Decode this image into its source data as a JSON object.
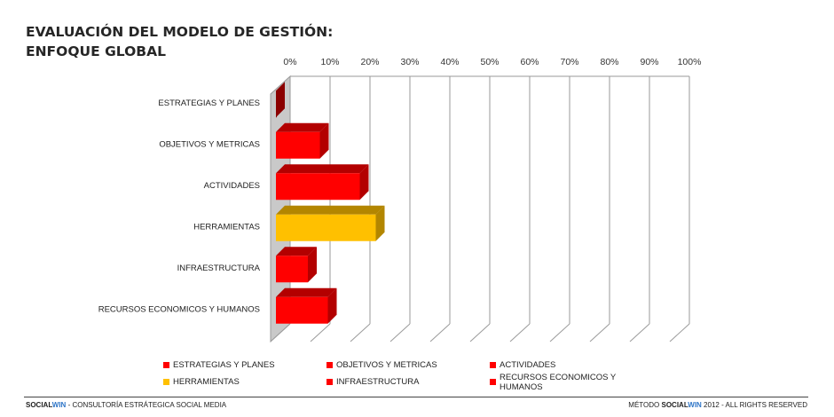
{
  "title": {
    "line1": "EVALUACIÓN DEL MODELO DE GESTIÓN:",
    "line2": "ENFOQUE GLOBAL"
  },
  "chart_data": {
    "type": "bar",
    "orientation": "horizontal",
    "three_d": true,
    "categories": [
      "ESTRATEGIAS Y PLANES",
      "OBJETIVOS Y METRICAS",
      "ACTIVIDADES",
      "HERRAMIENTAS",
      "INFRAESTRUCTURA",
      "RECURSOS ECONOMICOS Y HUMANOS"
    ],
    "values": [
      0,
      11,
      21,
      25,
      8,
      13
    ],
    "value_unit": "%",
    "colors": [
      "#ff0000",
      "#ff0000",
      "#ff0000",
      "#ffc000",
      "#ff0000",
      "#ff0000"
    ],
    "shade_colors": [
      "#8b0000",
      "#b30000",
      "#b30000",
      "#b38600",
      "#b30000",
      "#b30000"
    ],
    "xlim": [
      0,
      100
    ],
    "x_ticks": [
      "0%",
      "10%",
      "20%",
      "30%",
      "40%",
      "50%",
      "60%",
      "70%",
      "80%",
      "90%",
      "100%"
    ],
    "grid": true,
    "legend_position": "bottom"
  },
  "legend": {
    "items": [
      {
        "label": "ESTRATEGIAS Y PLANES",
        "color": "#ff0000"
      },
      {
        "label": "OBJETIVOS Y METRICAS",
        "color": "#ff0000"
      },
      {
        "label": "ACTIVIDADES",
        "color": "#ff0000"
      },
      {
        "label": "HERRAMIENTAS",
        "color": "#ffc000"
      },
      {
        "label": "INFRAESTRUCTURA",
        "color": "#ff0000"
      },
      {
        "label": "RECURSOS ECONOMICOS Y HUMANOS",
        "color": "#ff0000"
      }
    ]
  },
  "footer": {
    "left_brand_a": "SOCIAL",
    "left_brand_b": "WIN",
    "left_rest": " - CONSULTORÍA ESTRÁTEGICA SOCIAL MEDIA",
    "right_prefix": "MÉTODO ",
    "right_brand_a": "SOCIAL",
    "right_brand_b": "WIN",
    "right_rest": " 2012 - ALL RIGHTS RESERVED",
    "brand_color": "#2e75c7"
  }
}
